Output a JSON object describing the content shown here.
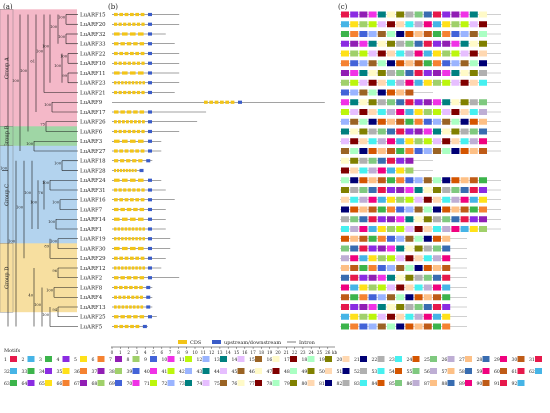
{
  "panel_labels": {
    "a": "(a)",
    "b": "(b)",
    "c": "(c)"
  },
  "groups": [
    {
      "label": "Group A",
      "color": "#f4b8c8",
      "rows": [
        0,
        11
      ]
    },
    {
      "label": "Group B",
      "color": "#9fd6a5",
      "rows": [
        12,
        13
      ]
    },
    {
      "label": "Group C",
      "color": "#b3d3ee",
      "rows": [
        14,
        23
      ]
    },
    {
      "label": "Group D",
      "color": "#f7dfa0",
      "rows": [
        24,
        30
      ]
    }
  ],
  "genes": [
    "LuARF15",
    "LuARF20",
    "LuARF32",
    "LuARF33",
    "LuARF22",
    "LuARF10",
    "LuARF11",
    "LuARF23",
    "LuARF21",
    "LuARF9",
    "LuARF17",
    "LuARF26",
    "LuARF6",
    "LuARF3",
    "LuARF27",
    "LuARF18",
    "LuARF28",
    "LuARF24",
    "LuARF31",
    "LuARF16",
    "LuARF7",
    "LuARF14",
    "LuARF1",
    "LuARF19",
    "LuARF30",
    "LuARF29",
    "LuARF12",
    "LuARF2",
    "LuARF8",
    "LuARF4",
    "LuARF13",
    "LuARF25",
    "LuARF5"
  ],
  "bootstrap": [
    "100",
    "100",
    "100",
    "100",
    "99",
    "100",
    "100",
    "100",
    "100",
    "61",
    "75",
    "100",
    "100",
    "100",
    "100",
    "100",
    "100",
    "76",
    "100",
    "100",
    "100",
    "100",
    "89",
    "100",
    "96",
    "100",
    "94",
    "100",
    "100",
    "40",
    "100",
    "100"
  ],
  "legend": {
    "cds": "CDS",
    "utr": "upstream/downstream",
    "intron": "Intron"
  },
  "axis": {
    "ticks": [
      "0",
      "1",
      "2",
      "3",
      "4",
      "5",
      "6",
      "7",
      "8",
      "9",
      "10",
      "11",
      "12",
      "13",
      "14",
      "15",
      "16",
      "17",
      "18",
      "19",
      "20",
      "21",
      "22",
      "23",
      "24",
      "25",
      "26"
    ],
    "unit": "kb"
  },
  "motifs_title": "Motifs",
  "motif_numbers": [
    "1",
    "2",
    "3",
    "4",
    "5",
    "6",
    "7",
    "8",
    "9",
    "10",
    "11",
    "12",
    "13",
    "14",
    "15",
    "16",
    "17",
    "18",
    "19",
    "20",
    "21",
    "22",
    "23",
    "24",
    "25",
    "26",
    "27",
    "28",
    "29",
    "30",
    "31",
    "32",
    "33",
    "34",
    "35",
    "36",
    "37",
    "38",
    "39",
    "40",
    "41",
    "42",
    "43",
    "44",
    "45",
    "46",
    "47",
    "48",
    "49",
    "50",
    "51",
    "52",
    "53",
    "54",
    "55",
    "56",
    "57",
    "58",
    "59",
    "60",
    "61",
    "62",
    "63",
    "64",
    "65",
    "66",
    "67",
    "68",
    "69",
    "70",
    "71",
    "72",
    "73",
    "74",
    "75",
    "76",
    "77",
    "78",
    "79",
    "80",
    "81",
    "82",
    "83",
    "84",
    "85",
    "86",
    "87",
    "88",
    "89",
    "90",
    "91",
    "92"
  ],
  "colors": {
    "cds": "#f2c418",
    "utr": "#3a5cc8",
    "intron": "#444444",
    "branch": "#1a1a1a"
  }
}
